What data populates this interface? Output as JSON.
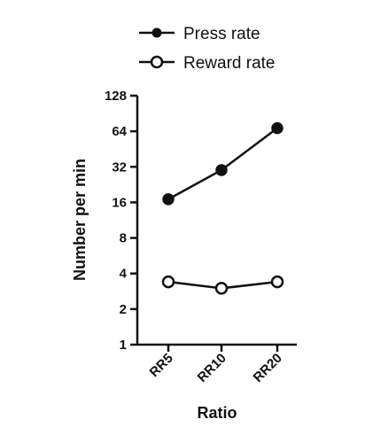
{
  "chart_data": {
    "type": "line",
    "title": "",
    "xlabel": "Ratio",
    "ylabel": "Number per min",
    "y_scale": "log2",
    "ylim": [
      1,
      128
    ],
    "y_ticks": [
      "1",
      "2",
      "4",
      "8",
      "16",
      "32",
      "64",
      "128"
    ],
    "categories": [
      "RR5",
      "RR10",
      "RR20"
    ],
    "legend_position": "top",
    "grid": false,
    "series": [
      {
        "name": "Press rate",
        "marker": "filled-circle",
        "color": "#111111",
        "values": [
          17,
          30,
          68
        ]
      },
      {
        "name": "Reward rate",
        "marker": "open-circle",
        "color": "#111111",
        "values": [
          3.4,
          3.0,
          3.4
        ]
      }
    ]
  }
}
